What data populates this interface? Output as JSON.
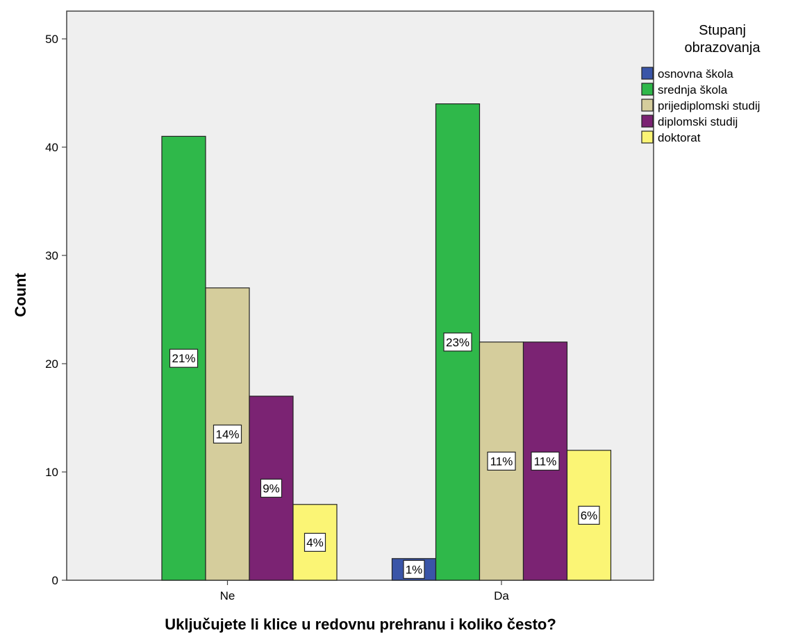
{
  "chart_data": {
    "type": "bar",
    "xlabel": "Uključujete li klice u redovnu prehranu i koliko često?",
    "ylabel": "Count",
    "categories": [
      "Ne",
      "Da"
    ],
    "ylim": [
      0,
      52
    ],
    "yticks": [
      0,
      10,
      20,
      30,
      40,
      50
    ],
    "grid": false,
    "legend": {
      "title_lines": [
        "Stupanj",
        "obrazovanja"
      ],
      "position": "right"
    },
    "series": [
      {
        "name": "osnovna škola",
        "color": "#3a55a8",
        "values": [
          0,
          2
        ],
        "labels": [
          "",
          "1%"
        ]
      },
      {
        "name": "srednja škola",
        "color": "#2fb84a",
        "values": [
          41,
          44
        ],
        "labels": [
          "21%",
          "23%"
        ]
      },
      {
        "name": "prijediplomski studij",
        "color": "#d5cd9c",
        "values": [
          27,
          22
        ],
        "labels": [
          "14%",
          "11%"
        ]
      },
      {
        "name": "diplomski studij",
        "color": "#7b2373",
        "values": [
          17,
          22
        ],
        "labels": [
          "9%",
          "11%"
        ]
      },
      {
        "name": "doktorat",
        "color": "#fbf575",
        "values": [
          7,
          12
        ],
        "labels": [
          "4%",
          "6%"
        ]
      }
    ]
  }
}
